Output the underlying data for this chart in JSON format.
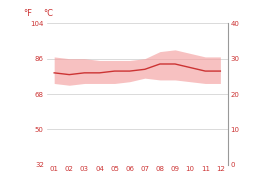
{
  "months": [
    1,
    2,
    3,
    4,
    5,
    6,
    7,
    8,
    9,
    10,
    11,
    12
  ],
  "month_labels": [
    "01",
    "02",
    "03",
    "04",
    "05",
    "06",
    "07",
    "08",
    "09",
    "10",
    "11",
    "12"
  ],
  "avg_temp_c": [
    26.0,
    25.5,
    26.0,
    26.0,
    26.5,
    26.5,
    27.0,
    28.5,
    28.5,
    27.5,
    26.5,
    26.5
  ],
  "high_temp_c": [
    30.5,
    30.0,
    30.0,
    29.5,
    29.5,
    29.5,
    30.0,
    32.0,
    32.5,
    31.5,
    30.5,
    30.5
  ],
  "low_temp_c": [
    23.0,
    22.5,
    23.0,
    23.0,
    23.0,
    23.5,
    24.5,
    24.0,
    24.0,
    23.5,
    23.0,
    23.0
  ],
  "line_color": "#cc3333",
  "fill_color": "#f4a0a0",
  "fill_alpha": 0.65,
  "background_color": "#ffffff",
  "grid_color": "#cccccc",
  "label_color": "#cc3333",
  "ylim_c": [
    0,
    40
  ],
  "yticks_c": [
    0,
    10,
    20,
    30,
    40
  ],
  "ytick_labels_f": [
    "32",
    "50",
    "68",
    "86",
    "104"
  ],
  "ytick_labels_c": [
    "0",
    "10",
    "20",
    "30",
    "40"
  ],
  "ylabel_f": "°F",
  "ylabel_c": "°C",
  "figsize": [
    2.59,
    1.94
  ],
  "dpi": 100
}
